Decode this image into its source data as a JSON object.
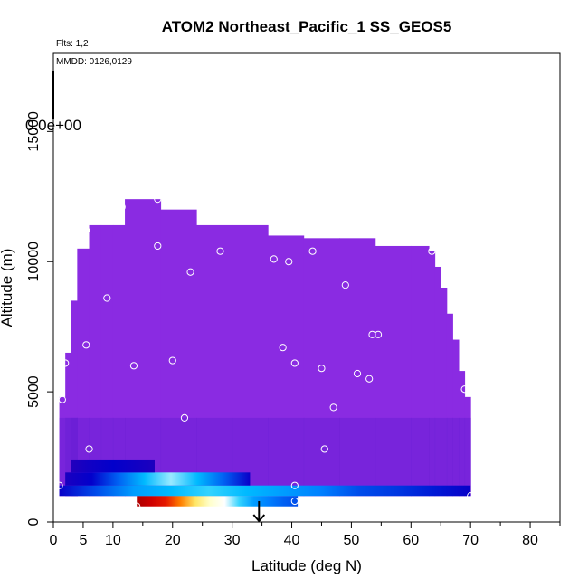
{
  "chart_data": {
    "type": "heatmap",
    "title": "ATOM2 Northeast_Pacific_1 SS_GEOS5",
    "annotations": {
      "flights": "Flts: 1,2",
      "dates": "MMDD: 0126,0129",
      "colorbar_value": "0.0e+00"
    },
    "xlabel": "Latitude (deg N)",
    "ylabel": "Altitude (m)",
    "xlim": [
      0,
      85
    ],
    "ylim": [
      0,
      18000
    ],
    "x_ticks": [
      0,
      5,
      10,
      20,
      30,
      40,
      50,
      60,
      70,
      80
    ],
    "x_minor_ticks": [
      15,
      25,
      35,
      45,
      55,
      65,
      75,
      85
    ],
    "y_ticks": [
      0,
      5000,
      10000,
      15000
    ],
    "grid": false,
    "colors": {
      "background_field": "#8a2be2",
      "low_field": "#6a1fd6",
      "scale": [
        "#2b00b8",
        "#0000cc",
        "#0080ff",
        "#00c8ff",
        "#ffffff",
        "#ffff80",
        "#ff8000",
        "#e00000",
        "#8b0000"
      ]
    },
    "profile_columns": [
      [
        1,
        4,
        1000,
        4800
      ],
      [
        2,
        4,
        1000,
        6500
      ],
      [
        3,
        4,
        1000,
        8500
      ],
      [
        4,
        6,
        1000,
        10500
      ],
      [
        6,
        8,
        1000,
        11400
      ],
      [
        8,
        10,
        1000,
        11400
      ],
      [
        10,
        12,
        1000,
        11400
      ],
      [
        12,
        18,
        1000,
        12400
      ],
      [
        18,
        24,
        1000,
        12000
      ],
      [
        24,
        30,
        1000,
        11400
      ],
      [
        30,
        36,
        1000,
        11400
      ],
      [
        36,
        42,
        1000,
        11000
      ],
      [
        42,
        48,
        1000,
        10900
      ],
      [
        48,
        54,
        1000,
        10900
      ],
      [
        54,
        60,
        1000,
        10600
      ],
      [
        60,
        63,
        1000,
        10600
      ],
      [
        63,
        64,
        1000,
        10400
      ],
      [
        64,
        65,
        1000,
        9800
      ],
      [
        65,
        66,
        1000,
        9000
      ],
      [
        66,
        67,
        1000,
        8000
      ],
      [
        67,
        68,
        1000,
        7000
      ],
      [
        68,
        69,
        1000,
        5800
      ],
      [
        69,
        70,
        1000,
        4800
      ]
    ],
    "concentration_bands": [
      {
        "alt_range": [
          600,
          1000
        ],
        "lat_range": [
          14,
          41
        ],
        "values": [
          0.95,
          0.9,
          0.85,
          0.75,
          0.65,
          0.55,
          0.5,
          0.4,
          0.3,
          0.25,
          0.22,
          0.2
        ]
      },
      {
        "alt_range": [
          1000,
          1400
        ],
        "lat_range": [
          1,
          70
        ],
        "values": [
          0.1,
          0.2,
          0.3,
          0.35,
          0.4,
          0.35,
          0.3,
          0.25,
          0.2,
          0.18,
          0.15,
          0.1
        ]
      },
      {
        "alt_range": [
          1400,
          1900
        ],
        "lat_range": [
          2,
          33
        ],
        "values": [
          0.05,
          0.12,
          0.22,
          0.35,
          0.45,
          0.35,
          0.22,
          0.1
        ]
      },
      {
        "alt_range": [
          1900,
          2400
        ],
        "lat_range": [
          3,
          17
        ],
        "values": [
          0.03,
          0.08,
          0.12,
          0.08,
          0.04
        ]
      }
    ],
    "sample_points": [
      [
        1,
        1400
      ],
      [
        1.5,
        4700
      ],
      [
        2,
        6100
      ],
      [
        3,
        10300
      ],
      [
        4,
        11200
      ],
      [
        5.5,
        11200
      ],
      [
        5.5,
        6800
      ],
      [
        6,
        2800
      ],
      [
        9,
        8600
      ],
      [
        11.5,
        12100
      ],
      [
        13.5,
        6000
      ],
      [
        14,
        600
      ],
      [
        17.5,
        10600
      ],
      [
        17.5,
        12400
      ],
      [
        20,
        6200
      ],
      [
        22,
        4000
      ],
      [
        23,
        9600
      ],
      [
        28,
        10400
      ],
      [
        37,
        10100
      ],
      [
        38.5,
        6700
      ],
      [
        39.5,
        10000
      ],
      [
        40.5,
        6100
      ],
      [
        40.5,
        1400
      ],
      [
        40.5,
        800
      ],
      [
        43.5,
        10400
      ],
      [
        45,
        5900
      ],
      [
        45.5,
        2800
      ],
      [
        47,
        4400
      ],
      [
        49,
        9100
      ],
      [
        51,
        5700
      ],
      [
        53,
        5500
      ],
      [
        53.5,
        7200
      ],
      [
        54.5,
        7200
      ],
      [
        63.5,
        10400
      ],
      [
        69,
        5100
      ],
      [
        70,
        1000
      ]
    ],
    "flight_arrow": {
      "lat": 34.5,
      "alt_range": [
        0,
        800
      ]
    }
  }
}
